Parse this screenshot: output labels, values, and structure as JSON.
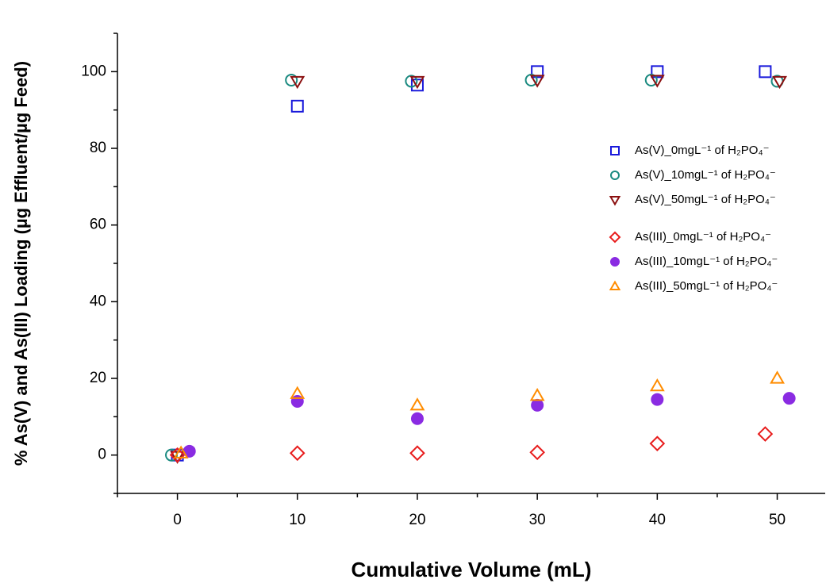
{
  "chart_data": {
    "type": "scatter",
    "x_label": "Cumulative Volume (mL)",
    "y_label": "% As(V) and As(III) Loading (µg Effluent/µg Feed)",
    "xlim": [
      -5,
      54
    ],
    "ylim": [
      -10,
      110
    ],
    "xticks": [
      0,
      10,
      20,
      30,
      40,
      50
    ],
    "yticks": [
      0,
      20,
      40,
      60,
      80,
      100
    ],
    "xminorticks": [
      -5,
      5,
      15,
      25,
      35,
      45
    ],
    "yminorticks": [
      -10,
      10,
      30,
      50,
      70,
      90,
      110
    ],
    "series": [
      {
        "name": "As(V)_0mgL⁻¹ of H₂PO₄⁻",
        "color": "#1a1adb",
        "marker": "square",
        "filled": false,
        "x": [
          0,
          10,
          20,
          30,
          40,
          49
        ],
        "values": [
          0,
          91,
          96.5,
          100,
          100,
          100
        ]
      },
      {
        "name": "As(V)_10mgL⁻¹ of H₂PO₄⁻",
        "color": "#1a8a80",
        "marker": "circle",
        "filled": false,
        "x": [
          -0.5,
          9.5,
          19.5,
          29.5,
          39.5,
          50
        ],
        "values": [
          0,
          97.8,
          97.5,
          97.8,
          97.8,
          97.5
        ]
      },
      {
        "name": "As(V)_50mgL⁻¹ of H₂PO₄⁻",
        "color": "#8b1010",
        "marker": "triangle-down",
        "filled": false,
        "x": [
          0,
          10,
          20,
          30,
          40,
          50.2
        ],
        "values": [
          -0.3,
          97.5,
          97.5,
          97.8,
          97.8,
          97.5
        ]
      },
      {
        "name": "As(III)_0mgL⁻¹ of H₂PO₄⁻",
        "color": "#e81c1c",
        "marker": "diamond",
        "filled": false,
        "x": [
          0,
          10,
          20,
          30,
          40,
          49
        ],
        "values": [
          0,
          0.5,
          0.5,
          0.7,
          3,
          5.5
        ]
      },
      {
        "name": "As(III)_10mgL⁻¹ of H₂PO₄⁻",
        "color": "#8a2be2",
        "marker": "circle",
        "filled": true,
        "x": [
          1,
          10,
          20,
          30,
          40,
          51
        ],
        "values": [
          1,
          14,
          9.5,
          13,
          14.5,
          14.8
        ]
      },
      {
        "name": "As(III)_50mgL⁻¹ of H₂PO₄⁻",
        "color": "#ff8c00",
        "marker": "triangle-up",
        "filled": false,
        "x": [
          0.3,
          10,
          20,
          30,
          40,
          50
        ],
        "values": [
          0.5,
          16,
          13,
          15.5,
          18,
          20
        ]
      }
    ]
  }
}
